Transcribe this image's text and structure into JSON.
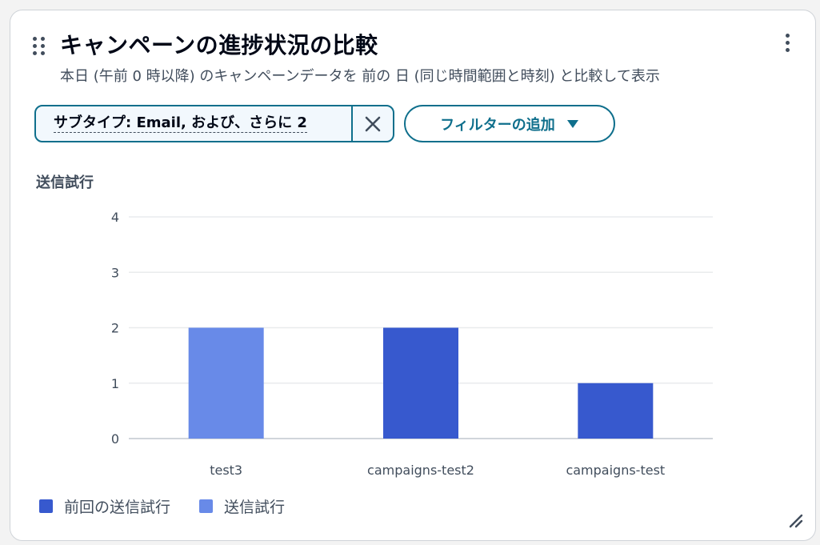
{
  "widget": {
    "title": "キャンペーンの進捗状況の比較",
    "subtitle": "本日 (午前 0 時以降) のキャンペーンデータを 前の 日 (同じ時間範囲と時刻) と比較して表示"
  },
  "filters": {
    "token_label": "サブタイプ: Email, および、さらに 2",
    "add_filter_label": "フィルターの追加"
  },
  "metric_label": "送信試行",
  "icons": {
    "drag": "drag-handle-icon",
    "menu": "more-vertical-icon",
    "remove": "close-icon",
    "dropdown": "caret-down-icon",
    "resize": "resize-handle-icon"
  },
  "colors": {
    "accent": "#0f6f8c",
    "previous_series": "#3759ce",
    "current_series": "#688ae8",
    "grid": "#e9ebed",
    "axis": "#d1d5db"
  },
  "chart_data": {
    "type": "bar",
    "categories": [
      "test3",
      "campaigns-test2",
      "campaigns-test"
    ],
    "series": [
      {
        "name": "前回の送信試行",
        "values": [
          0,
          2,
          1
        ],
        "color": "#3759ce"
      },
      {
        "name": "送信試行",
        "values": [
          2,
          0,
          0
        ],
        "color": "#688ae8"
      }
    ],
    "yticks": [
      0,
      1,
      2,
      3,
      4
    ],
    "ylim": [
      0,
      4
    ],
    "ylabel": "送信試行",
    "xlabel": "",
    "grid": true,
    "legend": "bottom-left"
  }
}
